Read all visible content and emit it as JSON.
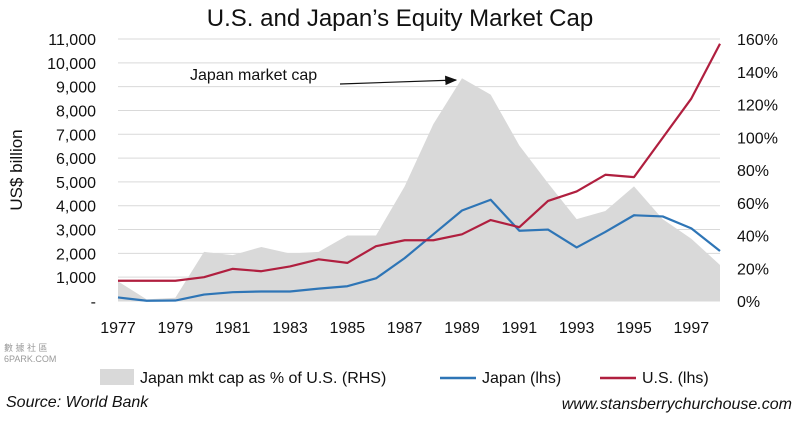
{
  "chart_data": {
    "type": "line",
    "title": "U.S. and Japan’s Equity Market Cap",
    "ylabel": "US$ billion",
    "x": [
      1977,
      1978,
      1979,
      1980,
      1981,
      1982,
      1983,
      1984,
      1985,
      1986,
      1987,
      1988,
      1989,
      1990,
      1991,
      1992,
      1993,
      1994,
      1995,
      1996,
      1997,
      1998
    ],
    "x_tick_labels": [
      "1977",
      "1979",
      "1981",
      "1983",
      "1985",
      "1987",
      "1989",
      "1991",
      "1993",
      "1995",
      "1997"
    ],
    "y_left_ticks": [
      "-",
      "1,000",
      "2,000",
      "3,000",
      "4,000",
      "5,000",
      "6,000",
      "7,000",
      "8,000",
      "9,000",
      "10,000",
      "11,000"
    ],
    "y_right_ticks": [
      "0%",
      "20%",
      "40%",
      "60%",
      "80%",
      "100%",
      "120%",
      "140%",
      "160%"
    ],
    "ylim_left": [
      0,
      11000
    ],
    "ylim_right": [
      0,
      160
    ],
    "grid": "horizontal",
    "legend_position": "bottom",
    "series": [
      {
        "name": "Japan mkt cap as % of U.S. (RHS)",
        "type": "area",
        "axis": "right",
        "color": "#d9d9d9",
        "values": [
          12,
          1,
          2,
          30,
          28,
          33,
          29,
          30,
          40,
          40,
          70,
          108,
          136,
          126,
          95,
          72,
          50,
          55,
          70,
          50,
          38,
          22
        ]
      },
      {
        "name": "Japan (lhs)",
        "type": "line",
        "axis": "left",
        "color": "#2e75b6",
        "values": [
          150,
          10,
          20,
          270,
          370,
          400,
          400,
          520,
          620,
          950,
          1800,
          2800,
          3800,
          4250,
          2950,
          3000,
          2250,
          2900,
          3600,
          3550,
          3050,
          2100
        ]
      },
      {
        "name": "U.S. (lhs)",
        "type": "line",
        "axis": "left",
        "color": "#b01f3f",
        "values": [
          850,
          850,
          850,
          1000,
          1350,
          1250,
          1450,
          1750,
          1600,
          2300,
          2550,
          2550,
          2800,
          3400,
          3100,
          4200,
          4600,
          5300,
          5200,
          6850,
          8500,
          10800
        ]
      }
    ],
    "annotations": [
      {
        "text": "Japan market cap",
        "points_to_x": 1989
      }
    ]
  },
  "footer": {
    "source": "Source: World Bank",
    "website": "www.stansberrychurchouse.com",
    "watermark_top": "數 據 社 區",
    "watermark_bottom": "6PARK.COM"
  }
}
